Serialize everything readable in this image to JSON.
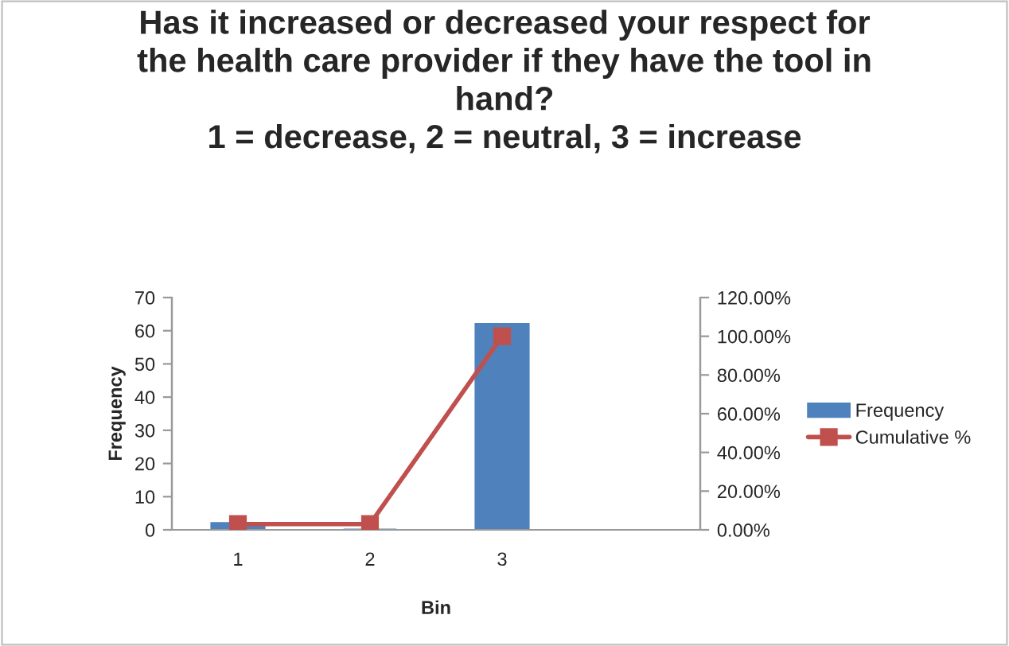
{
  "chart_data": {
    "type": "bar",
    "title": "Has it increased or decreased your respect for\nthe health care provider if they have the tool in\nhand?\n1 = decrease, 2 = neutral, 3 = increase",
    "xlabel": "Bin",
    "ylabel": "Frequency",
    "categories": [
      "1",
      "2",
      "3",
      null
    ],
    "series": [
      {
        "name": "Frequency",
        "color": "#4f81bd",
        "values": [
          2,
          0,
          62,
          null
        ]
      },
      {
        "name": "Cumulative %",
        "type": "line",
        "axis": "y2",
        "color": "#c0504d",
        "values": [
          3,
          3,
          100,
          null
        ]
      }
    ],
    "ylim": [
      0,
      70
    ],
    "yticks": [
      0,
      10,
      20,
      30,
      40,
      50,
      60,
      70
    ],
    "y2lim": [
      0,
      120
    ],
    "y2ticks": [
      {
        "value": 0,
        "label": "0.00%"
      },
      {
        "value": 20,
        "label": "20.00%"
      },
      {
        "value": 40,
        "label": "40.00%"
      },
      {
        "value": 60,
        "label": "60.00%"
      },
      {
        "value": 80,
        "label": "80.00%"
      },
      {
        "value": 100,
        "label": "100.00%"
      },
      {
        "value": 120,
        "label": "120.00%"
      }
    ],
    "marker": "square",
    "line_style": "solid",
    "grid": false,
    "legend": "right"
  }
}
